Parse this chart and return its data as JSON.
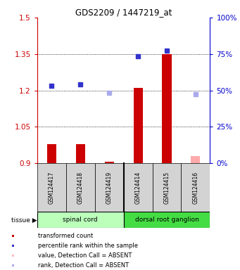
{
  "title": "GDS2209 / 1447219_at",
  "samples": [
    "GSM124417",
    "GSM124418",
    "GSM124419",
    "GSM124414",
    "GSM124415",
    "GSM124416"
  ],
  "bar_values": [
    0.98,
    0.98,
    0.906,
    1.21,
    1.35,
    0.93
  ],
  "bar_colors": [
    "#cc0000",
    "#cc0000",
    "#cc0000",
    "#cc0000",
    "#cc0000",
    "#ffaaaa"
  ],
  "dot_values": [
    1.22,
    1.225,
    1.19,
    1.34,
    1.365,
    1.185
  ],
  "dot_colors": [
    "#3333cc",
    "#3333cc",
    "#aaaaee",
    "#3333cc",
    "#3333cc",
    "#aaaaee"
  ],
  "ymin": 0.9,
  "ymax": 1.5,
  "yticks": [
    0.9,
    1.05,
    1.2,
    1.35,
    1.5
  ],
  "ytick_labels": [
    "0.9",
    "1.05",
    "1.2",
    "1.35",
    "1.5"
  ],
  "y2ticks_pct": [
    0,
    25,
    50,
    75,
    100
  ],
  "tissue_groups": [
    {
      "label": "spinal cord",
      "start": 0,
      "end": 3,
      "color": "#bbffbb"
    },
    {
      "label": "dorsal root ganglion",
      "start": 3,
      "end": 6,
      "color": "#44dd44"
    }
  ],
  "tissue_label": "tissue",
  "bar_width": 0.32,
  "left_axis_color": "#cc0000",
  "right_axis_color": "#0000cc",
  "legend_items": [
    {
      "label": "transformed count",
      "color": "#cc0000"
    },
    {
      "label": "percentile rank within the sample",
      "color": "#3333cc"
    },
    {
      "label": "value, Detection Call = ABSENT",
      "color": "#ffbbbb"
    },
    {
      "label": "rank, Detection Call = ABSENT",
      "color": "#aaaaee"
    }
  ]
}
